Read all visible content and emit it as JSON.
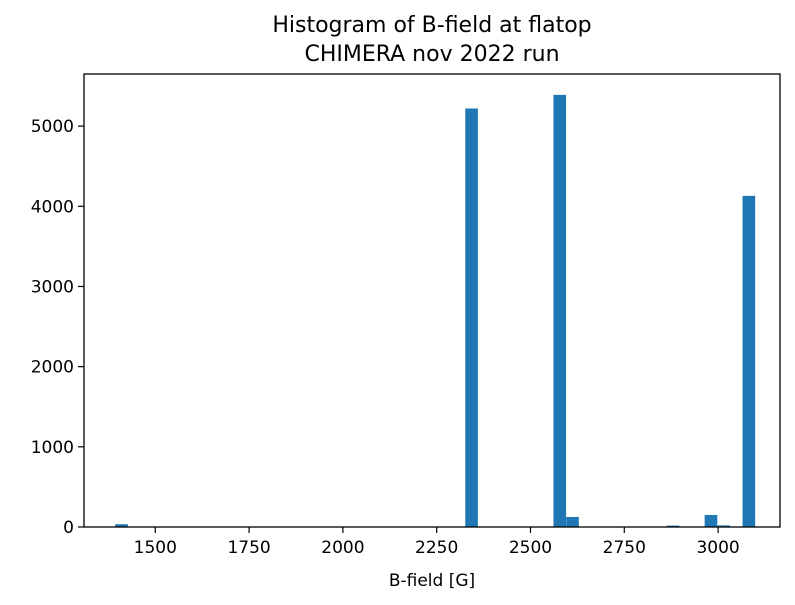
{
  "colors": {
    "bar": "#1f77b4",
    "axis": "#000000",
    "background": "#ffffff"
  },
  "chart_data": {
    "type": "bar",
    "title": "Histogram of B-field at flatop",
    "subtitle": "CHIMERA nov 2022 run",
    "xlabel": "B-field [G]",
    "ylabel": "",
    "xlim": [
      1310,
      3165
    ],
    "ylim": [
      0,
      5650
    ],
    "xticks": [
      1500,
      1750,
      2000,
      2250,
      2500,
      2750,
      3000
    ],
    "yticks": [
      0,
      1000,
      2000,
      3000,
      4000,
      5000
    ],
    "bin_width": 33.6,
    "grid": false,
    "bins": [
      {
        "x": 1410,
        "value": 35
      },
      {
        "x": 1443,
        "value": 3
      },
      {
        "x": 2343,
        "value": 5220
      },
      {
        "x": 2578,
        "value": 5390
      },
      {
        "x": 2612,
        "value": 125
      },
      {
        "x": 2645,
        "value": 5
      },
      {
        "x": 2679,
        "value": 4
      },
      {
        "x": 2712,
        "value": 3
      },
      {
        "x": 2780,
        "value": 4
      },
      {
        "x": 2880,
        "value": 18
      },
      {
        "x": 2981,
        "value": 150
      },
      {
        "x": 3015,
        "value": 20
      },
      {
        "x": 3082,
        "value": 4130
      }
    ]
  }
}
